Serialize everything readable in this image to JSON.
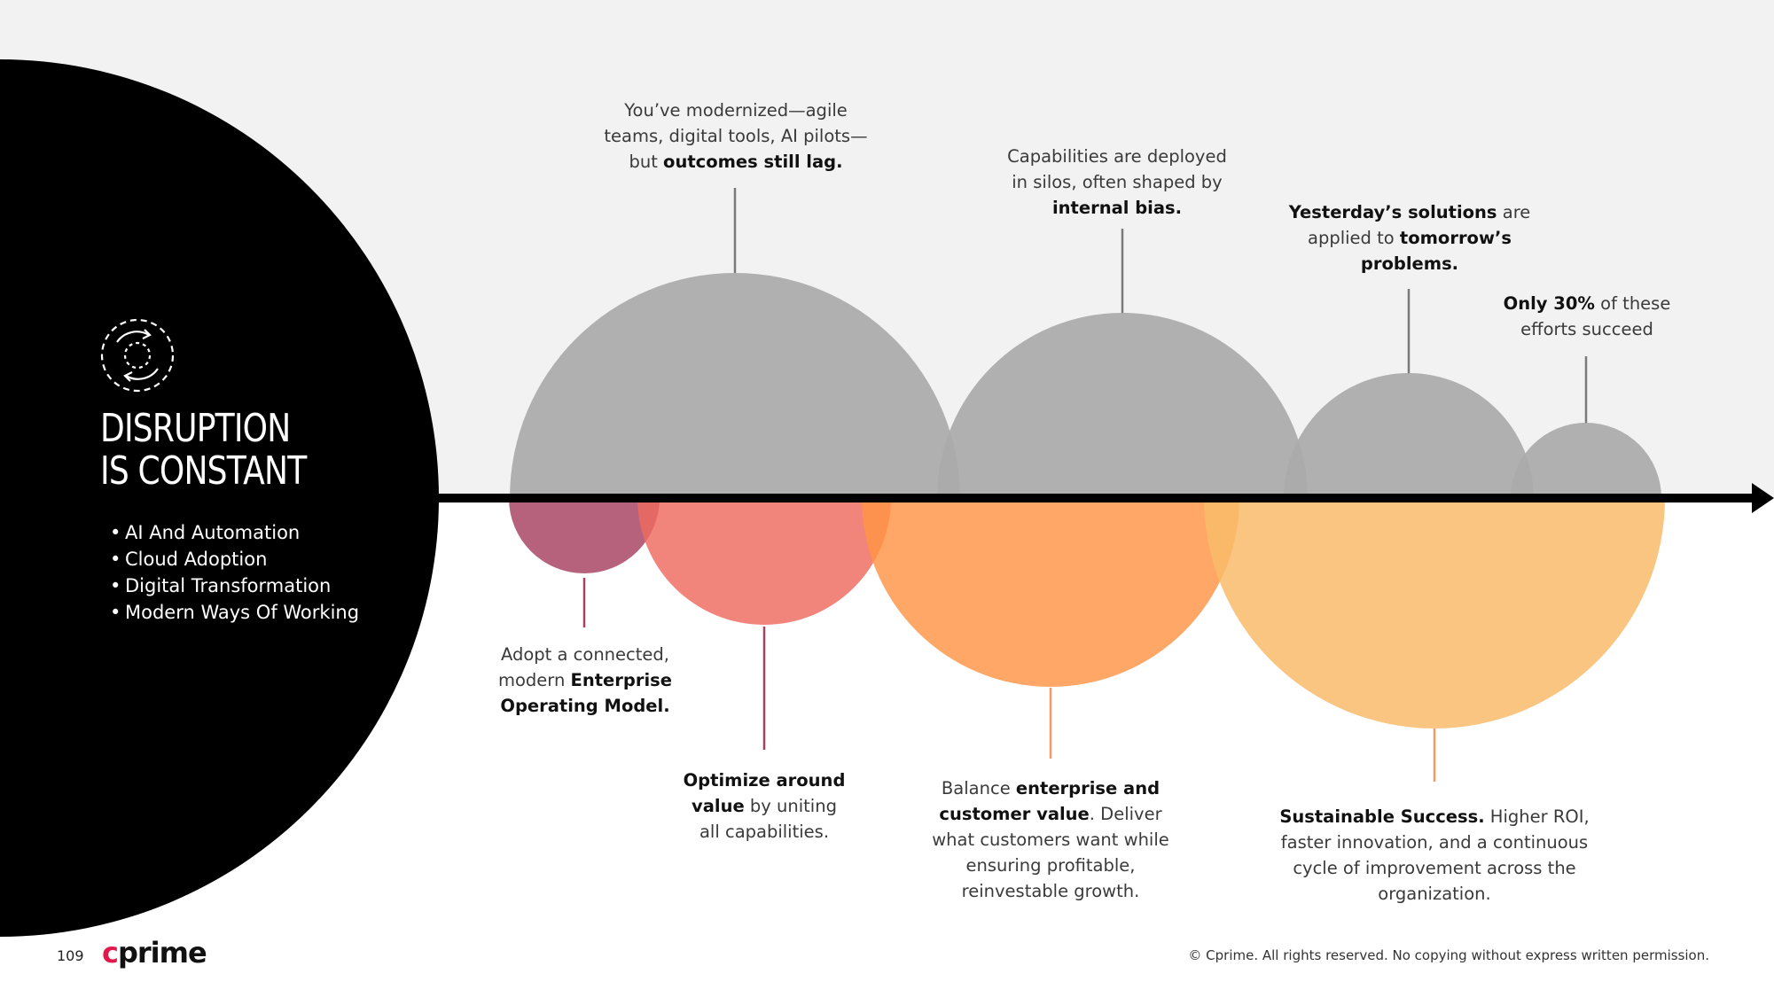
{
  "title": {
    "line1": "DISRUPTION",
    "line2": "IS CONSTANT"
  },
  "bullets": [
    "AI And Automation",
    "Cloud Adoption",
    "Digital Transformation",
    "Modern Ways Of Working"
  ],
  "top_callouts": [
    {
      "line1": "You’ve modernized—agile",
      "line2": "teams, digital tools, AI pilots—",
      "line3a": "but ",
      "line3b": "outcomes still lag."
    },
    {
      "line1": "Capabilities are deployed",
      "line2": "in silos, often shaped by",
      "line3": "internal bias."
    },
    {
      "l1a": "Yesterday’s solutions",
      "l1b": " are",
      "l2a": "applied to ",
      "l2b": "tomorrow’s",
      "l3": "problems."
    },
    {
      "l1a": "Only 30%",
      "l1b": " of these",
      "l2": "efforts succeed"
    }
  ],
  "bottom_callouts": [
    {
      "line1": "Adopt a connected,",
      "l2a": "modern ",
      "l2b": "Enterprise",
      "line3": "Operating Model."
    },
    {
      "line1": "Optimize around",
      "l2a": "value",
      "l2b": " by uniting",
      "line3": "all capabilities."
    },
    {
      "l1a": "Balance ",
      "l1b": "enterprise and",
      "l2a": "customer value",
      "l2b": ". Deliver",
      "line3": "what customers want while",
      "line4": "ensuring profitable,",
      "line5": "reinvestable growth."
    },
    {
      "l1a": "Sustainable Success.",
      "l1b": " Higher ROI,",
      "line2": "faster innovation, and a continuous",
      "line3": "cycle of improvement across the",
      "line4": "organization."
    }
  ],
  "footer": {
    "page": "109",
    "logo_c": "c",
    "logo_rest": "prime",
    "copyright": "© Cprime. All rights reserved. No copying without express written permission."
  },
  "colors": {
    "gray": "#aaaaaa",
    "plum": "#a7405f",
    "salmon": "#ee6a5f",
    "orange": "#ff9444",
    "peach": "#f9bb6a",
    "black": "#000000",
    "background": "#f2f2f2"
  }
}
